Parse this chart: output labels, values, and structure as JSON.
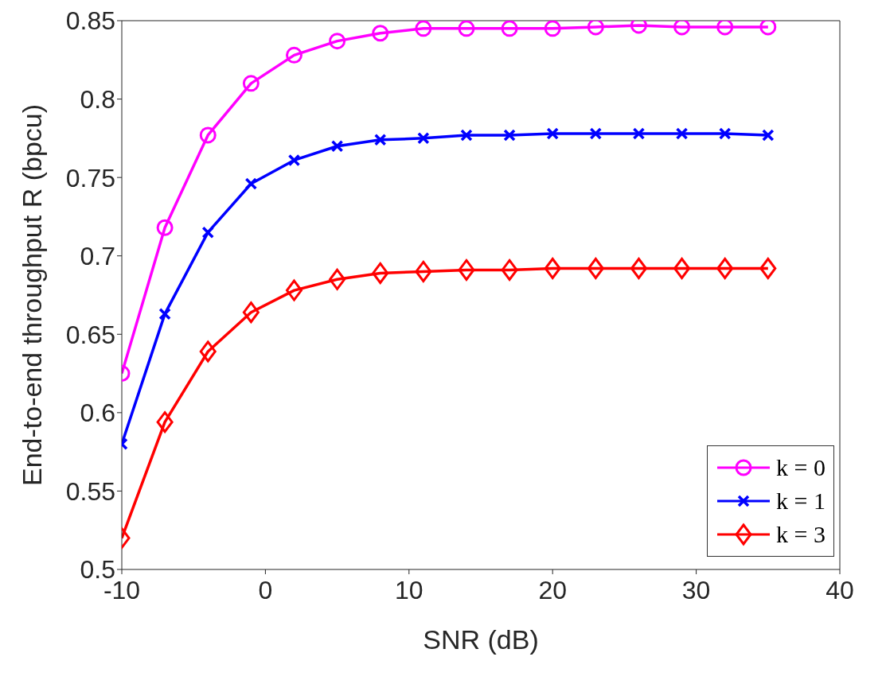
{
  "chart_data": {
    "type": "line",
    "xlabel": "SNR (dB)",
    "ylabel": "End-to-end throughput R (bpcu)",
    "x": [
      -10,
      -7,
      -4,
      -1,
      2,
      5,
      8,
      11,
      14,
      17,
      20,
      23,
      26,
      29,
      32,
      35
    ],
    "series": [
      {
        "name": "k = 0",
        "color": "#ff00ff",
        "marker": "circle",
        "values": [
          0.625,
          0.718,
          0.777,
          0.81,
          0.828,
          0.837,
          0.842,
          0.845,
          0.845,
          0.845,
          0.845,
          0.846,
          0.847,
          0.846,
          0.846,
          0.846
        ]
      },
      {
        "name": "k = 1",
        "color": "#0000ff",
        "marker": "cross",
        "values": [
          0.58,
          0.663,
          0.715,
          0.746,
          0.761,
          0.77,
          0.774,
          0.775,
          0.777,
          0.777,
          0.778,
          0.778,
          0.778,
          0.778,
          0.778,
          0.777
        ]
      },
      {
        "name": "k = 3",
        "color": "#ff0000",
        "marker": "diamond",
        "values": [
          0.52,
          0.594,
          0.639,
          0.664,
          0.678,
          0.685,
          0.689,
          0.69,
          0.691,
          0.691,
          0.692,
          0.692,
          0.692,
          0.692,
          0.692,
          0.692
        ]
      }
    ],
    "xlim": [
      -10,
      40
    ],
    "xticks": [
      -10,
      0,
      10,
      20,
      30,
      40
    ],
    "ylim": [
      0.5,
      0.85
    ],
    "yticks": [
      0.5,
      0.55,
      0.6,
      0.65,
      0.7,
      0.75,
      0.8,
      0.85
    ],
    "legend": "bottom right",
    "grid": false,
    "line_style": "solid"
  }
}
